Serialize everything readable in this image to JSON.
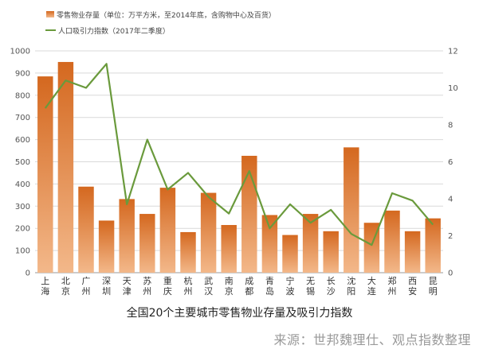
{
  "chart_data": {
    "type": "bar",
    "categories": [
      "上\n海",
      "北\n京",
      "广\n州",
      "深\n圳",
      "天\n津",
      "苏\n州",
      "重\n庆",
      "杭\n州",
      "武\n汉",
      "南\n京",
      "成\n都",
      "青\n岛",
      "宁\n波",
      "无\n锡",
      "长\n沙",
      "沈\n阳",
      "大\n连",
      "郑\n州",
      "西\n安",
      "昆\n明"
    ],
    "series": [
      {
        "name": "零售物业存量（单位：万平方米，至2014年底，含购物中心及百货）",
        "type": "bar",
        "axis": "left",
        "color": "#d9742a",
        "values": [
          885,
          950,
          388,
          235,
          332,
          265,
          383,
          183,
          360,
          215,
          527,
          260,
          170,
          265,
          187,
          565,
          225,
          280,
          187,
          245
        ]
      },
      {
        "name": "人口吸引力指数（2017年二季度）",
        "type": "line",
        "axis": "right",
        "color": "#6a9a3c",
        "values": [
          8.9,
          10.4,
          10.0,
          11.3,
          3.7,
          7.2,
          4.5,
          5.4,
          4.1,
          3.2,
          5.5,
          2.4,
          3.7,
          2.7,
          3.4,
          2.1,
          1.5,
          4.3,
          3.9,
          2.6
        ]
      }
    ],
    "y_left": {
      "min": 0,
      "max": 1000,
      "step": 100
    },
    "y_right": {
      "min": 0,
      "max": 12,
      "step": 2
    },
    "grid": true,
    "legend": "top-left"
  },
  "caption": "全国20个主要城市零售物业存量及吸引力指数",
  "source": "来源：世邦魏理仕、观点指数整理"
}
